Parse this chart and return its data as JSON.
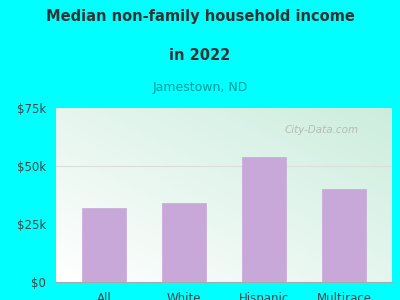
{
  "title_line1": "Median non-family household income",
  "title_line2": "in 2022",
  "subtitle": "Jamestown, ND",
  "categories": [
    "All",
    "White",
    "Hispanic",
    "Multirace"
  ],
  "values": [
    32000,
    34000,
    54000,
    40000
  ],
  "bar_color": "#c8a8d8",
  "background_color": "#00ffff",
  "plot_bg_color_topleft": "#cceedd",
  "plot_bg_color_bottomright": "#ffffff",
  "title_color": "#333333",
  "subtitle_color": "#009999",
  "tick_color": "#444444",
  "grid_line_color": "#dddddd",
  "ylim": [
    0,
    75000
  ],
  "yticks": [
    0,
    25000,
    50000,
    75000
  ],
  "ytick_labels": [
    "$0",
    "$25k",
    "$50k",
    "$75k"
  ],
  "watermark": "City-Data.com"
}
